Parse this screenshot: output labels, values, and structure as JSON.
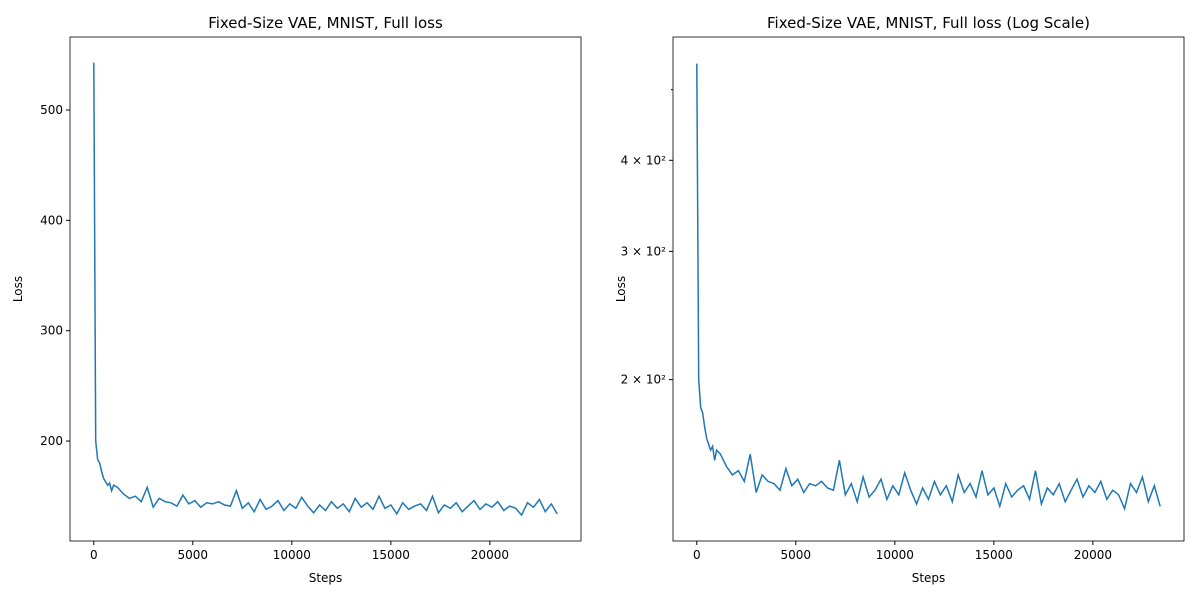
{
  "chart_data": [
    {
      "type": "line",
      "title": "Fixed-Size VAE, MNIST, Full loss",
      "xlabel": "Steps",
      "ylabel": "Loss",
      "xlim": [
        -1200,
        24600
      ],
      "ylim": [
        109.4,
        566.2
      ],
      "log_y": false,
      "xticks": [
        0,
        5000,
        10000,
        15000,
        20000
      ],
      "yticks": [
        200,
        300,
        400,
        500
      ],
      "yminorticks": [],
      "series": [
        {
          "color": "#1f77b4",
          "x": [
            0,
            100,
            200,
            300,
            400,
            500,
            600,
            700,
            800,
            900,
            1000,
            1200,
            1500,
            1800,
            2100,
            2400,
            2700,
            3000,
            3300,
            3600,
            3900,
            4200,
            4500,
            4800,
            5100,
            5400,
            5700,
            6000,
            6300,
            6600,
            6900,
            7200,
            7500,
            7800,
            8100,
            8400,
            8700,
            9000,
            9300,
            9600,
            9900,
            10200,
            10500,
            10800,
            11100,
            11400,
            11700,
            12000,
            12300,
            12600,
            12900,
            13200,
            13500,
            13800,
            14100,
            14400,
            14700,
            15000,
            15300,
            15600,
            15900,
            16200,
            16500,
            16800,
            17100,
            17400,
            17700,
            18000,
            18300,
            18600,
            18900,
            19200,
            19500,
            19800,
            20100,
            20400,
            20700,
            21000,
            21300,
            21600,
            21900,
            22200,
            22500,
            22800,
            23100,
            23400
          ],
          "values": [
            543,
            200,
            183,
            180,
            172,
            166,
            163,
            160,
            162,
            155,
            160,
            158,
            152,
            148,
            150,
            145,
            158,
            140,
            148,
            145,
            144,
            141,
            151,
            143,
            146,
            140,
            144,
            143,
            145,
            142,
            141,
            155,
            139,
            144,
            136,
            147,
            138,
            141,
            146,
            137,
            143,
            139,
            149,
            141,
            135,
            142,
            137,
            145,
            139,
            143,
            136,
            148,
            140,
            144,
            138,
            150,
            139,
            142,
            134,
            144,
            138,
            141,
            143,
            137,
            150,
            135,
            142,
            139,
            144,
            136,
            141,
            146,
            138,
            143,
            140,
            145,
            137,
            141,
            139,
            133,
            144,
            140,
            147,
            136,
            143,
            134
          ]
        }
      ]
    },
    {
      "type": "line",
      "title": "Fixed-Size VAE, MNIST, Full loss (Log Scale)",
      "xlabel": "Steps",
      "ylabel": "Loss",
      "xlim": [
        -1200,
        24600
      ],
      "ylim": [
        120.1,
        590.6
      ],
      "log_y": true,
      "xticks": [
        0,
        5000,
        10000,
        15000,
        20000
      ],
      "yticks": [
        {
          "value": 200,
          "label": "2 × 10²"
        },
        {
          "value": 300,
          "label": "3 × 10²"
        },
        {
          "value": 400,
          "label": "4 × 10²"
        }
      ],
      "yminorticks": [
        500
      ],
      "series": [
        {
          "color": "#1f77b4",
          "x": [
            0,
            100,
            200,
            300,
            400,
            500,
            600,
            700,
            800,
            900,
            1000,
            1200,
            1500,
            1800,
            2100,
            2400,
            2700,
            3000,
            3300,
            3600,
            3900,
            4200,
            4500,
            4800,
            5100,
            5400,
            5700,
            6000,
            6300,
            6600,
            6900,
            7200,
            7500,
            7800,
            8100,
            8400,
            8700,
            9000,
            9300,
            9600,
            9900,
            10200,
            10500,
            10800,
            11100,
            11400,
            11700,
            12000,
            12300,
            12600,
            12900,
            13200,
            13500,
            13800,
            14100,
            14400,
            14700,
            15000,
            15300,
            15600,
            15900,
            16200,
            16500,
            16800,
            17100,
            17400,
            17700,
            18000,
            18300,
            18600,
            18900,
            19200,
            19500,
            19800,
            20100,
            20400,
            20700,
            21000,
            21300,
            21600,
            21900,
            22200,
            22500,
            22800,
            23100,
            23400
          ],
          "values": [
            543,
            200,
            183,
            180,
            172,
            166,
            163,
            160,
            162,
            155,
            160,
            158,
            152,
            148,
            150,
            145,
            158,
            140,
            148,
            145,
            144,
            141,
            151,
            143,
            146,
            140,
            144,
            143,
            145,
            142,
            141,
            155,
            139,
            144,
            136,
            147,
            138,
            141,
            146,
            137,
            143,
            139,
            149,
            141,
            135,
            142,
            137,
            145,
            139,
            143,
            136,
            148,
            140,
            144,
            138,
            150,
            139,
            142,
            134,
            144,
            138,
            141,
            143,
            137,
            150,
            135,
            142,
            139,
            144,
            136,
            141,
            146,
            138,
            143,
            140,
            145,
            137,
            141,
            139,
            133,
            144,
            140,
            147,
            136,
            143,
            134
          ]
        }
      ]
    }
  ]
}
